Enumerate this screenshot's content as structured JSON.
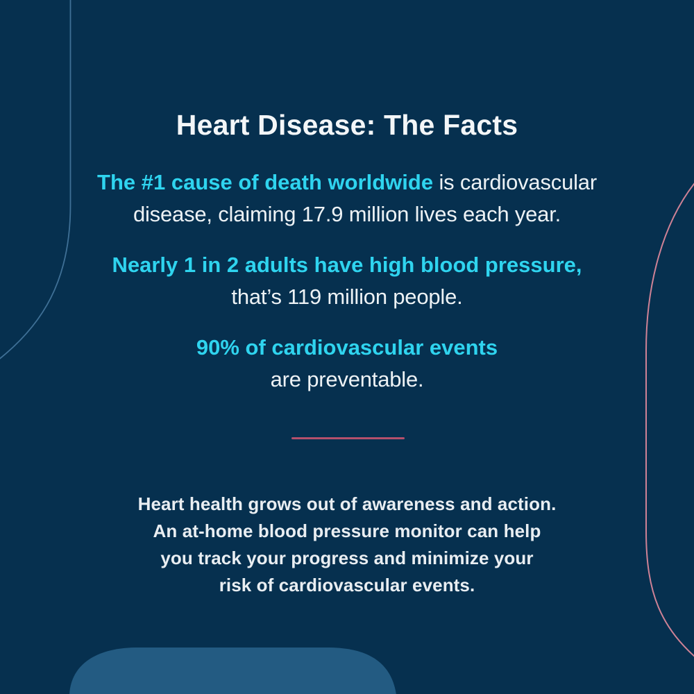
{
  "title": "Heart Disease: The Facts",
  "facts": [
    {
      "lines": [
        [
          {
            "text": "The #1 cause of death worldwide",
            "accent": true
          },
          {
            "text": " is cardiovascular",
            "accent": false
          }
        ],
        [
          {
            "text": "disease, claiming 17.9 million lives each year.",
            "accent": false
          }
        ]
      ]
    },
    {
      "lines": [
        [
          {
            "text": "Nearly 1 in 2 adults have high blood pressure,",
            "accent": true
          }
        ],
        [
          {
            "text": "that’s 119 million people.",
            "accent": false
          }
        ]
      ]
    },
    {
      "lines": [
        [
          {
            "text": "90% of cardiovascular events",
            "accent": true
          }
        ],
        [
          {
            "text": "are preventable.",
            "accent": false
          }
        ]
      ]
    }
  ],
  "footer": {
    "lines": [
      "Heart health grows out of awareness and action.",
      "An at-home blood pressure monitor can help",
      "you track your progress and minimize your",
      "risk of cardiovascular events."
    ]
  },
  "colors": {
    "bg": "#06304f",
    "accent": "#2fd4ef",
    "text": "#edf2f5",
    "blob": "#235b82",
    "curve-blue": "#3f7096",
    "curve-pink": "#cf8296",
    "divider": "#b5506c"
  }
}
